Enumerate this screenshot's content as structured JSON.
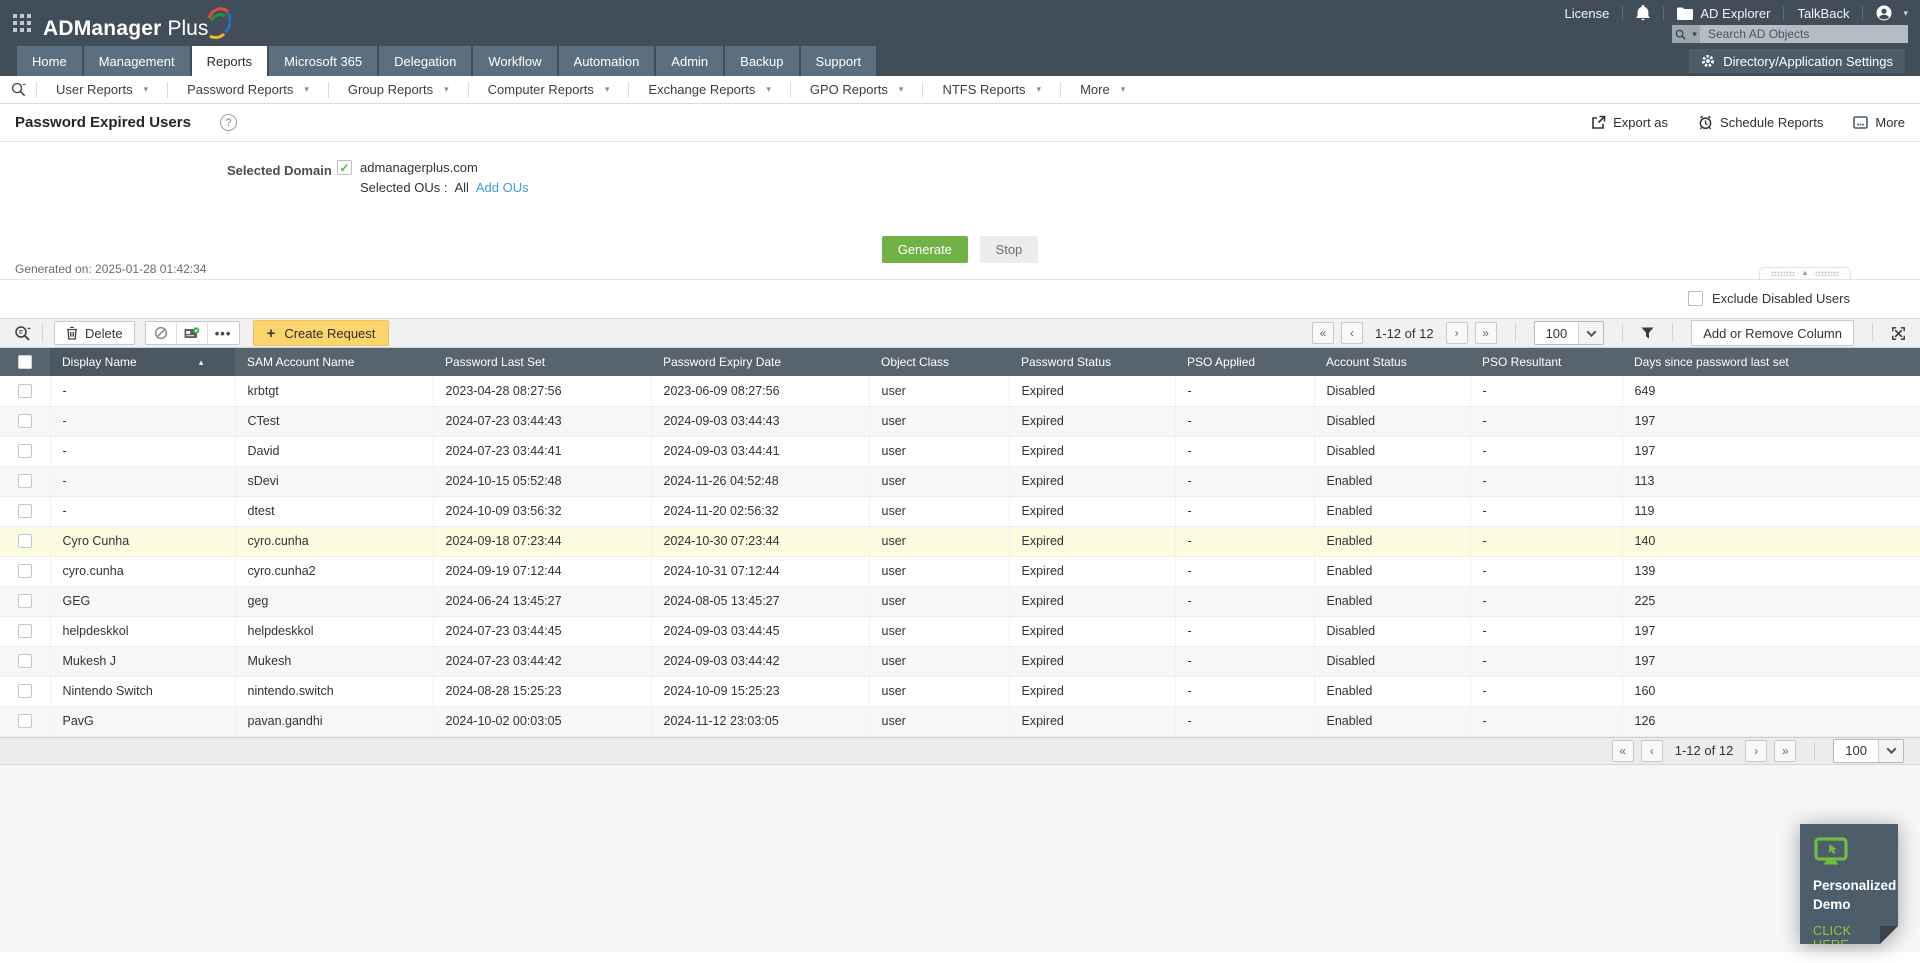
{
  "topbar": {
    "brand_primary": "ADManager",
    "brand_secondary": "Plus",
    "license": "License",
    "ad_explorer": "AD Explorer",
    "talkback": "TalkBack",
    "search_placeholder": "Search AD Objects"
  },
  "nav": {
    "tabs": [
      "Home",
      "Management",
      "Reports",
      "Microsoft 365",
      "Delegation",
      "Workflow",
      "Automation",
      "Admin",
      "Backup",
      "Support"
    ],
    "active_tab": "Reports",
    "settings": "Directory/Application Settings"
  },
  "subnav": [
    "User Reports",
    "Password Reports",
    "Group Reports",
    "Computer Reports",
    "Exchange Reports",
    "GPO Reports",
    "NTFS Reports",
    "More"
  ],
  "report": {
    "title": "Password Expired Users",
    "export_as": "Export as",
    "schedule_reports": "Schedule Reports",
    "more": "More",
    "selected_domain_label": "Selected Domain",
    "domain": "admanagerplus.com",
    "selected_ous_label": "Selected OUs :",
    "selected_ous_value": "All",
    "add_ous": "Add OUs",
    "generate": "Generate",
    "stop": "Stop",
    "generated_on": "Generated on: 2025-01-28 01:42:34",
    "exclude_disabled": "Exclude Disabled Users"
  },
  "toolbar": {
    "delete": "Delete",
    "create_request": "Create Request",
    "range": "1-12 of 12",
    "page_size": "100",
    "add_remove_column": "Add or Remove Column"
  },
  "table": {
    "columns": [
      "Display Name",
      "SAM Account Name",
      "Password Last Set",
      "Password Expiry Date",
      "Object Class",
      "Password Status",
      "PSO Applied",
      "Account Status",
      "PSO Resultant",
      "Days since password last set"
    ],
    "sorted_column": "Display Name",
    "sort_direction": "asc",
    "highlighted_row": 5,
    "rows": [
      [
        "-",
        "krbtgt",
        "2023-04-28 08:27:56",
        "2023-06-09 08:27:56",
        "user",
        "Expired",
        "-",
        "Disabled",
        "-",
        "649"
      ],
      [
        "-",
        "CTest",
        "2024-07-23 03:44:43",
        "2024-09-03 03:44:43",
        "user",
        "Expired",
        "-",
        "Disabled",
        "-",
        "197"
      ],
      [
        "-",
        "David",
        "2024-07-23 03:44:41",
        "2024-09-03 03:44:41",
        "user",
        "Expired",
        "-",
        "Disabled",
        "-",
        "197"
      ],
      [
        "-",
        "sDevi",
        "2024-10-15 05:52:48",
        "2024-11-26 04:52:48",
        "user",
        "Expired",
        "-",
        "Enabled",
        "-",
        "113"
      ],
      [
        "-",
        "dtest",
        "2024-10-09 03:56:32",
        "2024-11-20 02:56:32",
        "user",
        "Expired",
        "-",
        "Enabled",
        "-",
        "119"
      ],
      [
        "Cyro Cunha",
        "cyro.cunha",
        "2024-09-18 07:23:44",
        "2024-10-30 07:23:44",
        "user",
        "Expired",
        "-",
        "Enabled",
        "-",
        "140"
      ],
      [
        "cyro.cunha",
        "cyro.cunha2",
        "2024-09-19 07:12:44",
        "2024-10-31 07:12:44",
        "user",
        "Expired",
        "-",
        "Enabled",
        "-",
        "139"
      ],
      [
        "GEG",
        "geg",
        "2024-06-24 13:45:27",
        "2024-08-05 13:45:27",
        "user",
        "Expired",
        "-",
        "Enabled",
        "-",
        "225"
      ],
      [
        "helpdeskkol",
        "helpdeskkol",
        "2024-07-23 03:44:45",
        "2024-09-03 03:44:45",
        "user",
        "Expired",
        "-",
        "Disabled",
        "-",
        "197"
      ],
      [
        "Mukesh J",
        "Mukesh",
        "2024-07-23 03:44:42",
        "2024-09-03 03:44:42",
        "user",
        "Expired",
        "-",
        "Disabled",
        "-",
        "197"
      ],
      [
        "Nintendo Switch",
        "nintendo.switch",
        "2024-08-28 15:25:23",
        "2024-10-09 15:25:23",
        "user",
        "Expired",
        "-",
        "Enabled",
        "-",
        "160"
      ],
      [
        "PavG",
        "pavan.gandhi",
        "2024-10-02 00:03:05",
        "2024-11-12 23:03:05",
        "user",
        "Expired",
        "-",
        "Enabled",
        "-",
        "126"
      ]
    ]
  },
  "footer": {
    "range": "1-12 of 12",
    "page_size": "100"
  },
  "demo": {
    "title_line1": "Personalized",
    "title_line2": "Demo",
    "cta": "CLICK HERE"
  },
  "colors": {
    "header_bg": "#414e59",
    "tab_bg": "#5c6f7e",
    "table_header_bg": "#57646e",
    "accent_green": "#71b247",
    "create_request_bg": "#fbd46d",
    "link_blue": "#3a9fd5",
    "highlight_row": "#fbfbe0",
    "demo_green": "#8dc63f"
  }
}
